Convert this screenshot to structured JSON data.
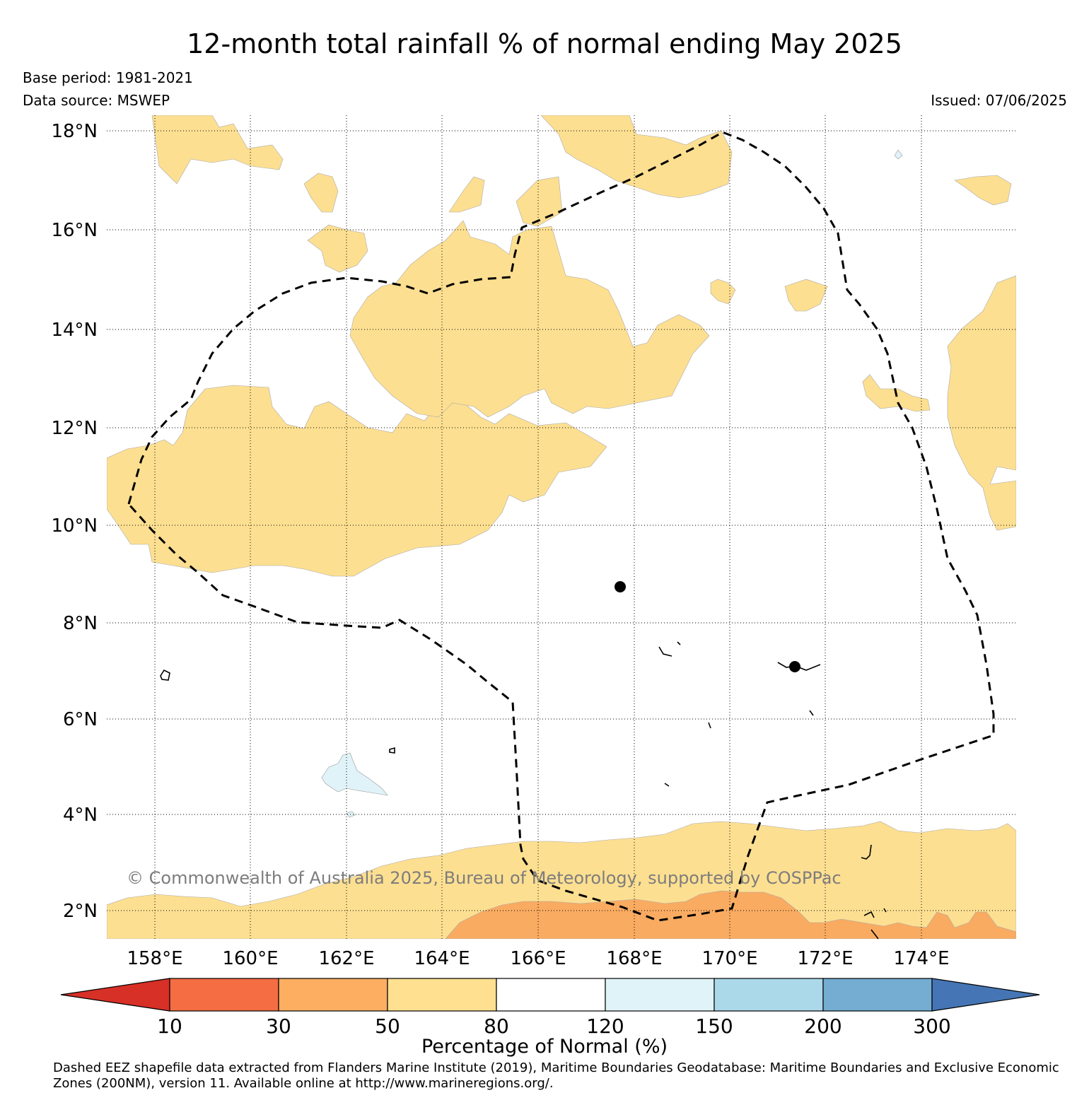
{
  "header": {
    "title": "12-month total rainfall % of normal ending May 2025",
    "base_period": "Base period: 1981-2021",
    "data_source": "Data source: MSWEP",
    "issued": "Issued: 07/06/2025"
  },
  "map": {
    "lat_labels": [
      "18°N",
      "16°N",
      "14°N",
      "12°N",
      "10°N",
      "8°N",
      "6°N",
      "4°N",
      "2°N"
    ],
    "lon_labels": [
      "158°E",
      "160°E",
      "162°E",
      "164°E",
      "166°E",
      "168°E",
      "170°E",
      "172°E",
      "174°E"
    ],
    "gridlines": "dotted",
    "boundary": "Dashed EEZ",
    "watermark": "© Commonwealth of Australia 2025, Bureau of Meteorology, supported by COSPPac",
    "region_colors": {
      "30-50": "#f9ab61",
      "50-80": "#fddf91",
      "120-150": "#e0f3f8"
    }
  },
  "colorbar": {
    "title": "Percentage of Normal (%)",
    "ticks": [
      "10",
      "30",
      "50",
      "80",
      "120",
      "150",
      "200",
      "300"
    ],
    "colors": [
      "#d73027",
      "#f46d43",
      "#fdae61",
      "#fee090",
      "#ffffff",
      "#e0f3f8",
      "#abd9e9",
      "#74add1",
      "#4575b4"
    ]
  },
  "footnote": "Dashed EEZ shapefile data extracted from Flanders Marine Institute (2019), Maritime Boundaries Geodatabase: Maritime Boundaries and Exclusive Economic Zones (200NM), version 11. Available online at http://www.marineregions.org/."
}
